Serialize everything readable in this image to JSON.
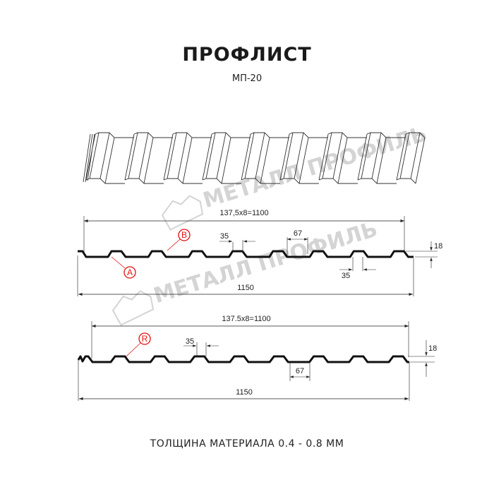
{
  "header": {
    "title": "ПРОФЛИСТ",
    "subtitle": "МП-20"
  },
  "watermark": "МЕТАЛЛ ПРОФИЛЬ",
  "profile_a": {
    "pitch_label": "137,5x8=1100",
    "total_width": "1150",
    "top_width": "35",
    "bottom_width": "35",
    "rib_base": "67",
    "height": "18",
    "markers": [
      "A",
      "B"
    ]
  },
  "profile_r": {
    "pitch_label": "137.5x8=1100",
    "total_width": "1150",
    "top_width": "35",
    "rib_base": "67",
    "height": "18",
    "markers": [
      "R"
    ]
  },
  "footer": {
    "thickness": "ТОЛЩИНА МАТЕРИАЛА 0.4 - 0.8 ММ"
  },
  "colors": {
    "profile": "#111111",
    "marker": "#e01010",
    "watermark": "#d4d4d4"
  }
}
